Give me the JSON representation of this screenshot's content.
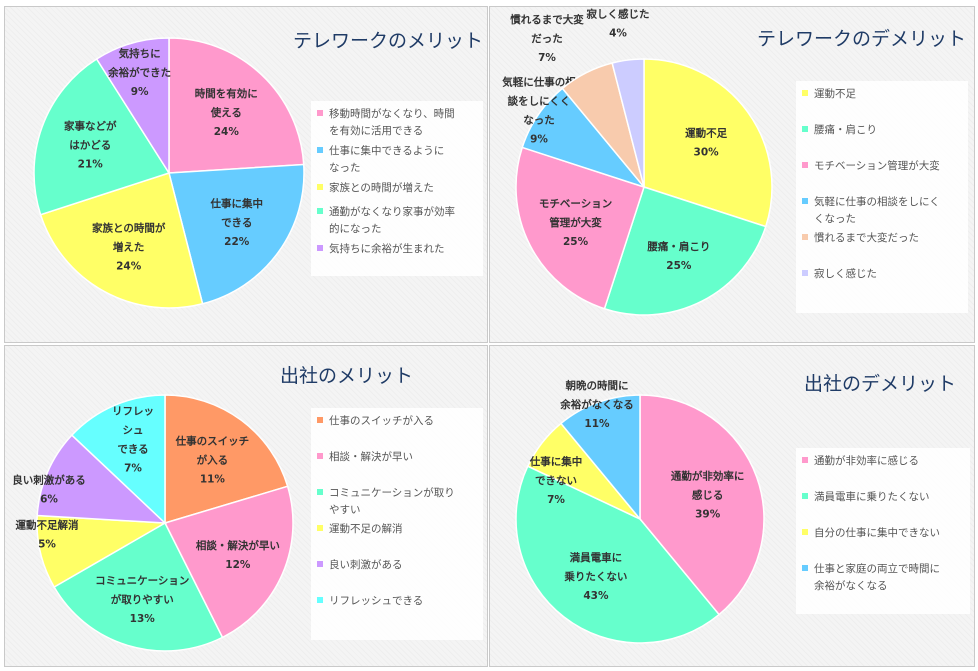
{
  "chart_data": [
    {
      "type": "pie",
      "title": "テレワークのメリット",
      "slices": [
        {
          "label_lines": [
            "時間を有効に",
            "使える",
            "24%"
          ],
          "value": 24,
          "color": "#ff99cc"
        },
        {
          "label_lines": [
            "仕事に集中",
            "できる",
            "22%"
          ],
          "value": 22,
          "color": "#66ccff"
        },
        {
          "label_lines": [
            "家族との時間が",
            "増えた",
            "24%"
          ],
          "value": 24,
          "color": "#ffff66"
        },
        {
          "label_lines": [
            "家事などが",
            "はかどる",
            "21%"
          ],
          "value": 21,
          "color": "#66ffcc"
        },
        {
          "label_lines": [
            "気持ちに",
            "余裕ができた",
            "9%"
          ],
          "value": 9,
          "color": "#cc99ff"
        }
      ],
      "legend": [
        [
          "移動時間がなくなり、時間",
          "を有効に活用できる"
        ],
        [
          "仕事に集中できるように",
          "なった"
        ],
        [
          "家族との時間が増えた"
        ],
        [
          "通勤がなくなり家事が効率",
          "的になった"
        ],
        [
          "気持ちに余裕が生まれた"
        ]
      ],
      "legend_position": "right"
    },
    {
      "type": "pie",
      "title": "テレワークのデメリット",
      "slices": [
        {
          "label_lines": [
            "運動不足",
            "30%"
          ],
          "value": 30,
          "color": "#ffff66"
        },
        {
          "label_lines": [
            "腰痛・肩こり",
            "25%"
          ],
          "value": 25,
          "color": "#66ffcc"
        },
        {
          "label_lines": [
            "モチベーション",
            "管理が大変",
            "25%"
          ],
          "value": 25,
          "color": "#ff99cc"
        },
        {
          "label_lines": [
            "気軽に仕事の相",
            "談をしにくく",
            "なった",
            "9%"
          ],
          "value": 9,
          "color": "#66ccff"
        },
        {
          "label_lines": [
            "慣れるまで大変",
            "だった",
            "7%"
          ],
          "value": 7,
          "color": "#f8cbad"
        },
        {
          "label_lines": [
            "寂しく感じた",
            "4%"
          ],
          "value": 4,
          "color": "#ccccff"
        }
      ],
      "legend": [
        [
          "運動不足"
        ],
        [
          "腰痛・肩こり"
        ],
        [
          "モチベーション管理が大変"
        ],
        [
          "気軽に仕事の相談をしにく",
          "くなった"
        ],
        [
          "慣れるまで大変だった"
        ],
        [
          "寂しく感じた"
        ]
      ],
      "legend_position": "right"
    },
    {
      "type": "pie",
      "title": "出社のメリット",
      "slices": [
        {
          "label_lines": [
            "仕事のスイッチ",
            "が入る",
            "11%"
          ],
          "value": 11,
          "color": "#ff9966"
        },
        {
          "label_lines": [
            "相談・解決が早い",
            "12%"
          ],
          "value": 12,
          "color": "#ff99cc"
        },
        {
          "label_lines": [
            "コミュニケーション",
            "が取りやすい",
            "13%"
          ],
          "value": 13,
          "color": "#66ffcc"
        },
        {
          "label_lines": [
            "運動不足解消",
            "5%"
          ],
          "value": 5,
          "color": "#ffff66"
        },
        {
          "label_lines": [
            "良い刺激がある",
            "6%"
          ],
          "value": 6,
          "color": "#cc99ff"
        },
        {
          "label_lines": [
            "リフレッ",
            "シュ",
            "できる",
            "7%"
          ],
          "value": 7,
          "color": "#66ffff"
        }
      ],
      "legend": [
        [
          "仕事のスイッチが入る"
        ],
        [
          "相談・解決が早い"
        ],
        [
          "コミュニケーションが取り",
          "やすい"
        ],
        [
          "運動不足の解消"
        ],
        [
          "良い刺激がある"
        ],
        [
          "リフレッシュできる"
        ]
      ],
      "legend_position": "right"
    },
    {
      "type": "pie",
      "title": "出社のデメリット",
      "slices": [
        {
          "label_lines": [
            "通勤が非効率に",
            "感じる",
            "39%"
          ],
          "value": 39,
          "color": "#ff99cc"
        },
        {
          "label_lines": [
            "満員電車に",
            "乗りたくない",
            "43%"
          ],
          "value": 43,
          "color": "#66ffcc"
        },
        {
          "label_lines": [
            "仕事に集中",
            "できない",
            "7%"
          ],
          "value": 7,
          "color": "#ffff66"
        },
        {
          "label_lines": [
            "朝晩の時間に",
            "余裕がなくなる",
            "11%"
          ],
          "value": 11,
          "color": "#66ccff"
        }
      ],
      "legend": [
        [
          "通勤が非効率に感じる"
        ],
        [
          "満員電車に乗りたくない"
        ],
        [
          "自分の仕事に集中できない"
        ],
        [
          "仕事と家庭の両立で時間に",
          "余裕がなくなる"
        ]
      ],
      "legend_position": "right"
    }
  ]
}
